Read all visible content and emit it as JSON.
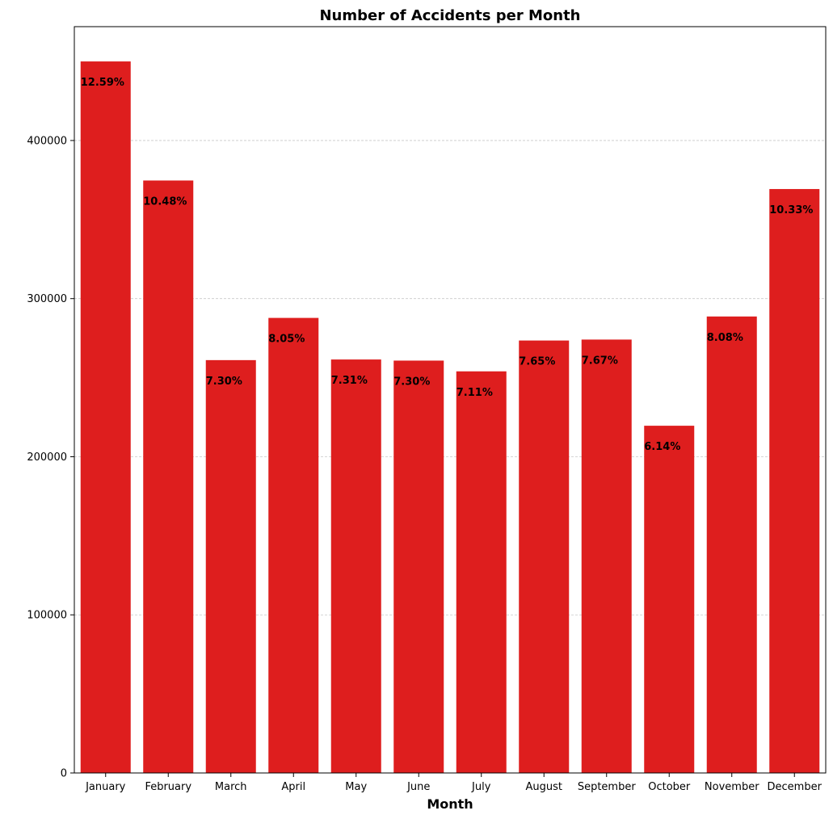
{
  "chart_data": {
    "type": "bar",
    "title": "Number of Accidents per Month",
    "xlabel": "Month",
    "ylabel": "",
    "categories": [
      "January",
      "February",
      "March",
      "April",
      "May",
      "June",
      "July",
      "August",
      "September",
      "October",
      "November",
      "December"
    ],
    "values": [
      450000,
      374700,
      261100,
      287800,
      261500,
      260800,
      254000,
      273500,
      274100,
      219600,
      288700,
      369300
    ],
    "labels": [
      "12.59%",
      "10.48%",
      "7.30%",
      "8.05%",
      "7.31%",
      "7.30%",
      "7.11%",
      "7.65%",
      "7.67%",
      "6.14%",
      "8.08%",
      "10.33%"
    ],
    "ylim": [
      0,
      472000
    ],
    "yticks": [
      0,
      100000,
      200000,
      300000,
      400000
    ],
    "ytick_labels": [
      "0",
      "100000",
      "200000",
      "300000",
      "400000"
    ],
    "grid": "horizontal dashed",
    "bar_color": "#de1e1e"
  }
}
